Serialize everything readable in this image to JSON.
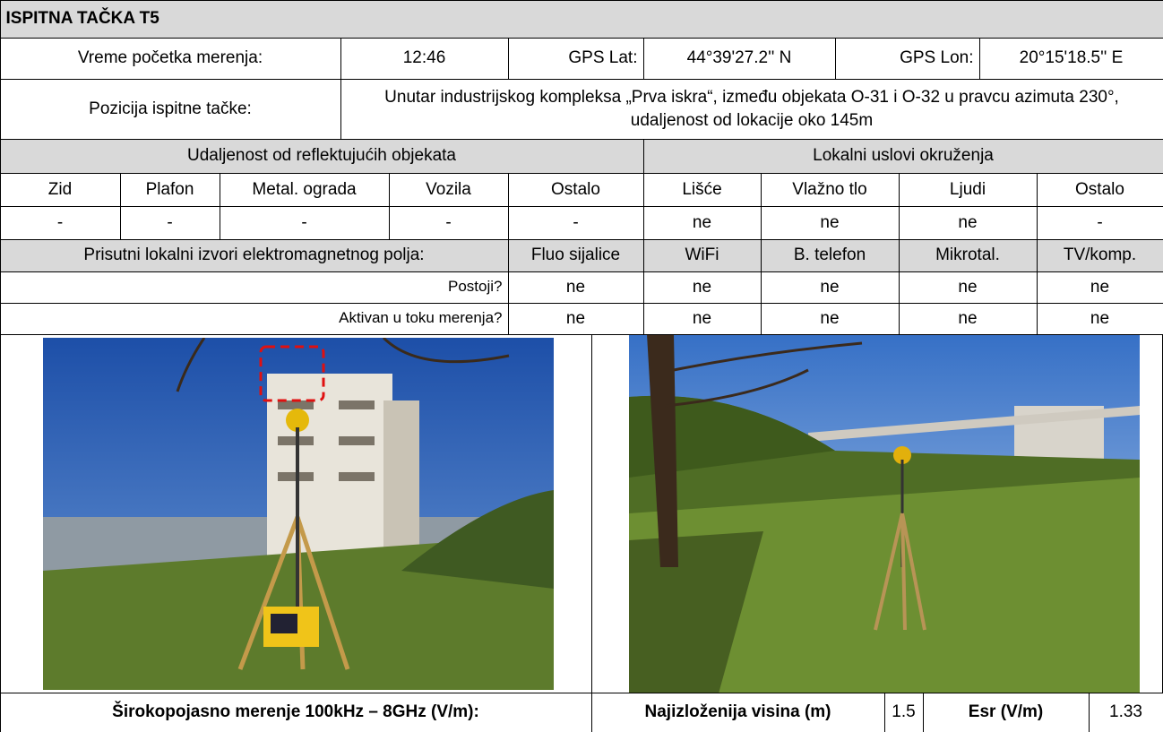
{
  "title": "ISPITNA TAČKA T5",
  "measurement": {
    "start_time_label": "Vreme početka merenja:",
    "start_time": "12:46",
    "gps_lat_label": "GPS Lat:",
    "gps_lat": "44°39'27.2'' N",
    "gps_lon_label": "GPS Lon:",
    "gps_lon": "20°15'18.5'' E"
  },
  "position": {
    "label": "Pozicija ispitne tačke:",
    "text": "Unutar industrijskog kompleksa „Prva iskra“, između objekata O-31 i O-32 u pravcu azimuta 230°, udaljenost od lokacije oko 145m"
  },
  "reflective": {
    "title": "Udaljenost od reflektujućih objekata",
    "columns": [
      "Zid",
      "Plafon",
      "Metal. ograda",
      "Vozila",
      "Ostalo"
    ],
    "values": [
      "-",
      "-",
      "-",
      "-",
      "-"
    ]
  },
  "environment": {
    "title": "Lokalni uslovi okruženja",
    "columns": [
      "Lišće",
      "Vlažno tlo",
      "Ljudi",
      "Ostalo"
    ],
    "values": [
      "ne",
      "ne",
      "ne",
      "-"
    ]
  },
  "em_sources": {
    "title": "Prisutni lokalni izvori elektromagnetnog polja:",
    "columns": [
      "Fluo sijalice",
      "WiFi",
      "B. telefon",
      "Mikrotal.",
      "TV/komp."
    ],
    "rows": [
      {
        "label": "Postoji?",
        "values": [
          "ne",
          "ne",
          "ne",
          "ne",
          "ne"
        ]
      },
      {
        "label": "Aktivan u toku merenja?",
        "values": [
          "ne",
          "ne",
          "ne",
          "ne",
          "ne"
        ]
      }
    ]
  },
  "result": {
    "label": "Širokopojasno merenje 100kHz – 8GHz (V/m):",
    "height_label": "Najizloženija visina (m)",
    "height": "1.5",
    "esr_label": "Esr (V/m)",
    "esr": "1.33"
  }
}
